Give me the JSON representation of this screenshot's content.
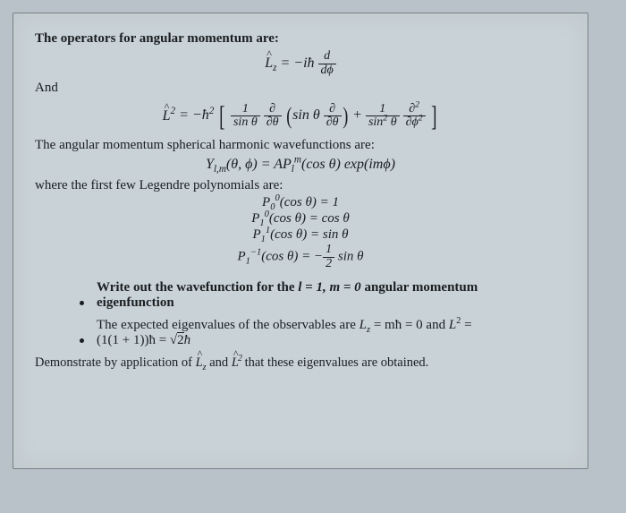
{
  "title": "The operators for angular momentum are:",
  "eq_lz": {
    "lhs": "L̂",
    "sub": "z",
    "eq": " = −iħ ",
    "frac_n": "d",
    "frac_d": "dϕ"
  },
  "and_label": "And",
  "eq_l2": {
    "lhs": "L̂",
    "sup": "2",
    "pre": " = −ħ",
    "presup": "2",
    "f1_n": "1",
    "f1_d": "sin θ",
    "f2": "∂",
    "f2_d": "∂θ",
    "mid_pre": "sin θ",
    "f3_n": "∂",
    "f3_d": "∂θ",
    "plus": " + ",
    "f4_n": "1",
    "f4_d": "sin",
    "f4_d_sup": "2",
    "f4_d2": " θ",
    "f5_n": "∂",
    "f5_n_sup": "2",
    "f5_d": "∂ϕ",
    "f5_d_sup": "2"
  },
  "section2": "The angular momentum spherical harmonic wavefunctions are:",
  "eq_ylm": "Y",
  "ylm_sub": "l,m",
  "ylm_args": "(θ, ϕ) = AP",
  "ylm_l": "l",
  "ylm_m": "m",
  "ylm_tail": "(cos θ) exp(imϕ)",
  "section3": "where the first few Legendre polynomials are:",
  "leg": [
    {
      "p": "P",
      "sub": "0",
      "sup": "0",
      "arg": "(cos θ) = 1"
    },
    {
      "p": "P",
      "sub": "1",
      "sup": "0",
      "arg": "(cos θ) = cos θ"
    },
    {
      "p": "P",
      "sub": "1",
      "sup": "1",
      "arg": "(cos θ) = sin θ"
    }
  ],
  "leg4": {
    "p": "P",
    "sub": "1",
    "sup": "−1",
    "pre": "(cos θ) = −",
    "f_n": "1",
    "f_d": "2",
    "tail": " sin θ"
  },
  "bullet1a": "Write out the wavefunction for the ",
  "bullet1b": "l = 1, m = 0",
  "bullet1c": " angular momentum",
  "bullet1d": "eigenfunction",
  "bullet2a": "The expected eigenvalues of the observables are ",
  "bullet2b": "L",
  "bullet2b_sub": "z",
  "bullet2c": " = mħ = 0",
  "bullet2d": " and ",
  "bullet2e": "L",
  "bullet2e_sup": "2",
  "bullet2f": " =",
  "bullet2g_pre": "(1(1 + 1))ħ = ",
  "bullet2g_sqrt": "√2",
  "bullet2g_tail": "ħ",
  "footer_a": "Demonstrate by application of ",
  "footer_b": "L̂",
  "footer_b_sub": "z",
  "footer_c": " and ",
  "footer_d": "L̂",
  "footer_d_sup": "2",
  "footer_e": " that these eigenvalues are obtained.",
  "colors": {
    "bg": "#c9d2d6",
    "outer": "#b8c2c8",
    "text": "#1a1e21",
    "border": "#7a8288"
  }
}
